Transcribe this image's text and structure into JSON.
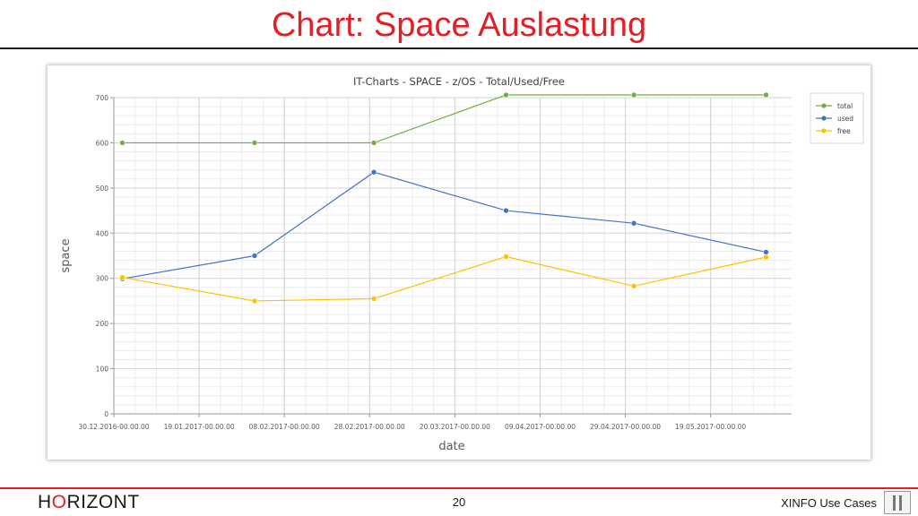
{
  "slide": {
    "title": "Chart: Space Auslastung",
    "logo_prefix": "H",
    "logo_accent": "O",
    "logo_suffix": "RIZONT",
    "page_number": "20",
    "footer_label": "XINFO Use Cases"
  },
  "chart_data": {
    "type": "line",
    "title": "IT-Charts - SPACE - z/OS - Total/Used/Free",
    "xlabel": "date",
    "ylabel": "space",
    "ylim": [
      0,
      700
    ],
    "yticks": [
      0,
      100,
      200,
      300,
      400,
      500,
      600,
      700
    ],
    "xlim": [
      "2016-12-30",
      "2017-06-07"
    ],
    "xtick_labels": [
      {
        "date": "2016-12-30",
        "label": "30.12.2016-00.00.00"
      },
      {
        "date": "2017-01-19",
        "label": "19.01.2017-00.00.00"
      },
      {
        "date": "2017-02-08",
        "label": "08.02.2017-00.00.00"
      },
      {
        "date": "2017-02-28",
        "label": "28.02.2017-00.00.00"
      },
      {
        "date": "2017-03-20",
        "label": "20.03.2017-00.00.00"
      },
      {
        "date": "2017-04-09",
        "label": "09.04.2017-00.00.00"
      },
      {
        "date": "2017-04-29",
        "label": "29.04.2017-00.00.00"
      },
      {
        "date": "2017-05-19",
        "label": "19.05.2017-00.00.00"
      }
    ],
    "x": [
      "2017-01-01",
      "2017-02-01",
      "2017-03-01",
      "2017-04-01",
      "2017-05-01",
      "2017-06-01"
    ],
    "grid": true,
    "legend_position": "top-right",
    "series": [
      {
        "name": "total",
        "color": "#70ad47",
        "values": [
          600,
          600,
          600,
          706,
          706,
          706
        ]
      },
      {
        "name": "used",
        "color": "#4472c4",
        "values": [
          299,
          350,
          535,
          450,
          422,
          358
        ]
      },
      {
        "name": "free",
        "color": "#ffc000",
        "values": [
          302,
          250,
          255,
          348,
          283,
          347
        ]
      }
    ]
  }
}
